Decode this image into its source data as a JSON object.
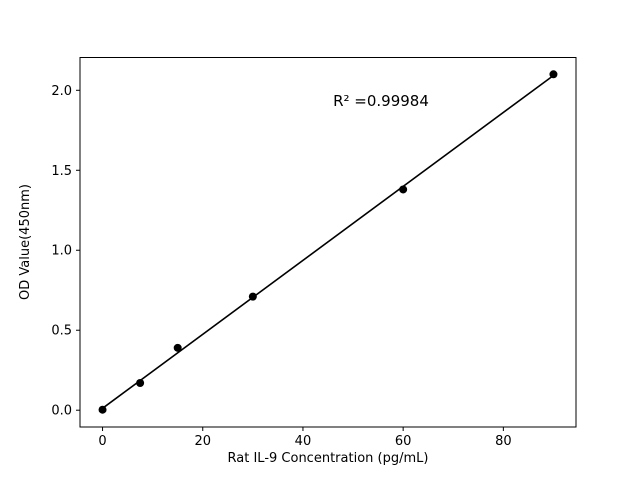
{
  "chart_data": {
    "type": "scatter",
    "title": "",
    "xlabel": "Rat IL-9 Concentration (pg/mL)",
    "ylabel": "OD Value(450nm)",
    "annotation": "R² =0.99984",
    "x": [
      0,
      7.5,
      15,
      30,
      60,
      90
    ],
    "y": [
      0.003,
      0.17,
      0.39,
      0.71,
      1.38,
      2.1
    ],
    "fit": "linear",
    "xlim": [
      -4.5,
      94.5
    ],
    "ylim": [
      -0.105,
      2.205
    ],
    "xticks": [
      0,
      20,
      40,
      60,
      80
    ],
    "xtick_labels": [
      "0",
      "20",
      "40",
      "60",
      "80"
    ],
    "yticks": [
      0.0,
      0.5,
      1.0,
      1.5,
      2.0
    ],
    "ytick_labels": [
      "0.0",
      "0.5",
      "1.0",
      "1.5",
      "2.0"
    ],
    "grid": false,
    "legend": "none",
    "marker_color": "#000000",
    "line_color": "#000000",
    "axis_color": "#000000",
    "background": "#ffffff"
  }
}
